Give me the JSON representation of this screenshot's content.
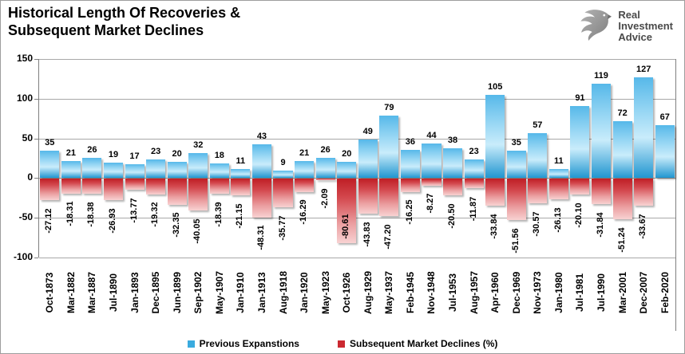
{
  "header": {
    "title_line1": "Historical Length Of Recoveries &",
    "title_line2": "Subsequent Market Declines",
    "logo_line1": "Real",
    "logo_line2": "Investment",
    "logo_line3": "Advice"
  },
  "legend": {
    "series1_label": "Previous Expanstions",
    "series2_label": "Subsequent Market Declines (%)"
  },
  "colors": {
    "blue_bar": "#2fa3dc",
    "red_bar": "#c9252c",
    "legend_blue": "#3aabdf",
    "legend_red": "#cb2930",
    "gridline": "#a8a8a8",
    "axis": "#7f7f7f"
  },
  "chart_data": {
    "type": "bar",
    "title": "Historical Length Of Recoveries & Subsequent Market Declines",
    "categories": [
      "Oct-1873",
      "Mar-1882",
      "Mar-1887",
      "Jul-1890",
      "Jan-1893",
      "Dec-1895",
      "Jun-1899",
      "Sep-1902",
      "May-1907",
      "Jan-1910",
      "Jan-1913",
      "Aug-1918",
      "Jan-1920",
      "May-1923",
      "Oct-1926",
      "Aug-1929",
      "May-1937",
      "Feb-1945",
      "Nov-1948",
      "Jul-1953",
      "Aug-1957",
      "Apr-1960",
      "Dec-1969",
      "Nov-1973",
      "Jan-1980",
      "Jul-1981",
      "Jul-1990",
      "Mar-2001",
      "Dec-2007",
      "Feb-2020"
    ],
    "series": [
      {
        "name": "Previous Expanstions",
        "values": [
          35,
          21,
          26,
          19,
          17,
          23,
          20,
          32,
          18,
          11,
          43,
          9,
          21,
          26,
          20,
          49,
          79,
          36,
          44,
          38,
          23,
          105,
          35,
          57,
          11,
          91,
          119,
          72,
          127,
          67
        ]
      },
      {
        "name": "Subsequent Market Declines (%)",
        "values": [
          -27.12,
          -18.31,
          -18.38,
          -26.93,
          -13.77,
          -19.32,
          -32.35,
          -40.05,
          -18.39,
          -21.15,
          -48.31,
          -35.77,
          -16.29,
          -2.09,
          -80.61,
          -43.83,
          -47.2,
          -16.25,
          -8.27,
          -20.5,
          -11.87,
          -33.84,
          -51.56,
          -30.57,
          -26.13,
          -20.1,
          -31.84,
          -51.24,
          -33.67,
          null
        ]
      }
    ],
    "ylim": [
      -100,
      150
    ],
    "yticks": [
      150,
      100,
      50,
      0,
      -50,
      -100
    ],
    "grid": true,
    "legend_position": "bottom"
  }
}
